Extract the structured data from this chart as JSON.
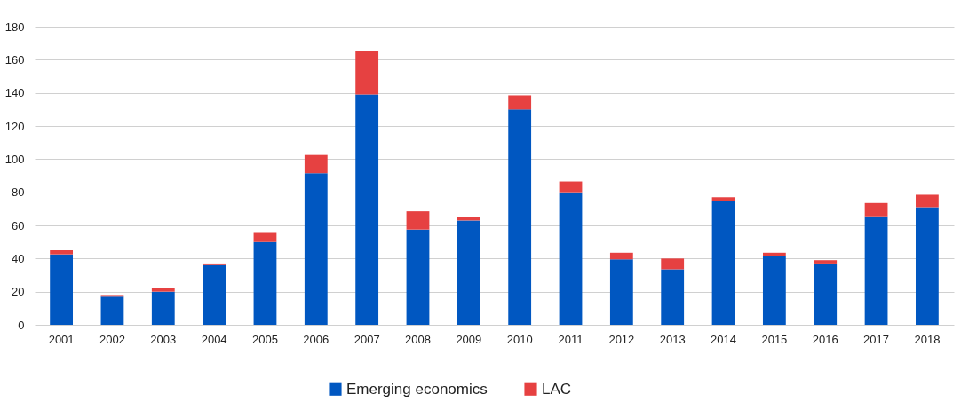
{
  "chart_data": {
    "type": "bar",
    "stacked": true,
    "categories": [
      "2001",
      "2002",
      "2003",
      "2004",
      "2005",
      "2006",
      "2007",
      "2008",
      "2009",
      "2010",
      "2011",
      "2012",
      "2013",
      "2014",
      "2015",
      "2016",
      "2017",
      "2018"
    ],
    "series": [
      {
        "name": "Emerging economics",
        "color": "#0057c1",
        "values": [
          42.5,
          17,
          20,
          36,
          50,
          91.5,
          139,
          57.5,
          63,
          130,
          80,
          39.5,
          33.5,
          74.5,
          41.5,
          37,
          65.5,
          71
        ]
      },
      {
        "name": "LAC",
        "color": "#e64141",
        "values": [
          2.5,
          1,
          2,
          1,
          6,
          11,
          26,
          11,
          2,
          8.5,
          6.5,
          4,
          6.5,
          2.5,
          2,
          2,
          8,
          7.5
        ]
      }
    ],
    "ylim": [
      0,
      180
    ],
    "yticks": [
      0,
      20,
      40,
      60,
      80,
      100,
      120,
      140,
      160,
      180
    ],
    "grid": "y",
    "legend": "bottom"
  }
}
